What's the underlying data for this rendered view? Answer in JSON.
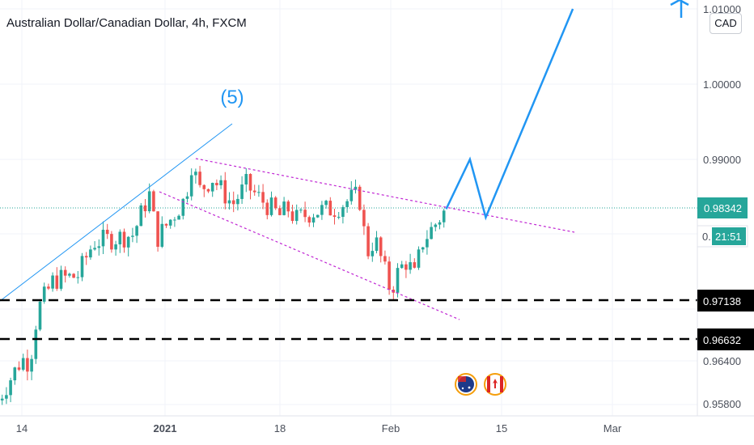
{
  "header": {
    "title": "Australian Dollar/Canadian Dollar, 4h, FXCM",
    "currency_button": "CAD"
  },
  "colors": {
    "up": "#26a69a",
    "down": "#ef5350",
    "projection": "#2196f3",
    "channel": "#c026d3",
    "level": "#000000",
    "wave_label": "#2196f3"
  },
  "chart_data": {
    "type": "candlestick",
    "symbol": "AUD/CAD",
    "interval": "4h",
    "source": "FXCM",
    "x_ticks": [
      "14",
      "2021",
      "18",
      "Feb",
      "15",
      "Mar"
    ],
    "y_ticks": [
      "1.01000",
      "1.00000",
      "0.99000",
      "0.96400",
      "0.95800"
    ],
    "current_price": "0.98342",
    "countdown": "21:51",
    "current_price_partial": "0.",
    "levels": [
      "0.97138",
      "0.96632"
    ],
    "wave_label": "(5)",
    "price_path": [
      [
        "Dec 11",
        0.958
      ],
      [
        "Dec 14",
        0.9635
      ],
      [
        "Dec 15",
        0.963
      ],
      [
        "Dec 16",
        0.97
      ],
      [
        "Dec 18",
        0.974
      ],
      [
        "Dec 21",
        0.9745
      ],
      [
        "Dec 23",
        0.979
      ],
      [
        "Dec 28",
        0.98
      ],
      [
        "Dec 30",
        0.9855
      ],
      [
        "Dec 31",
        0.9795
      ],
      [
        "Jan 4",
        0.9848
      ],
      [
        "Jan 5",
        0.9898
      ],
      [
        "Jan 6",
        0.9858
      ],
      [
        "Jan 8",
        0.9875
      ],
      [
        "Jan 11",
        0.984
      ],
      [
        "Jan 13",
        0.9866
      ],
      [
        "Jan 15",
        0.9848
      ],
      [
        "Jan 18",
        0.9825
      ],
      [
        "Jan 19",
        0.9835
      ],
      [
        "Jan 20",
        0.982
      ],
      [
        "Jan 22",
        0.983
      ],
      [
        "Jan 25",
        0.9835
      ],
      [
        "Jan 27",
        0.9848
      ],
      [
        "Jan 28",
        0.9852
      ],
      [
        "Jan 29",
        0.9775
      ],
      [
        "Jan 30",
        0.9795
      ],
      [
        "Feb 1",
        0.9725
      ],
      [
        "Feb 2",
        0.9752
      ],
      [
        "Feb 3",
        0.9765
      ],
      [
        "Feb 4",
        0.9745
      ],
      [
        "Feb 5",
        0.979
      ],
      [
        "Feb 6",
        0.9805
      ],
      [
        "Feb 8",
        0.9834
      ]
    ],
    "projection_path": [
      [
        "Feb 8",
        0.9834
      ],
      [
        "Feb 11",
        0.99
      ],
      [
        "Feb 13",
        0.9823
      ],
      [
        "Feb 24",
        1.01
      ]
    ],
    "events": [
      "AUD",
      "CAD"
    ]
  }
}
